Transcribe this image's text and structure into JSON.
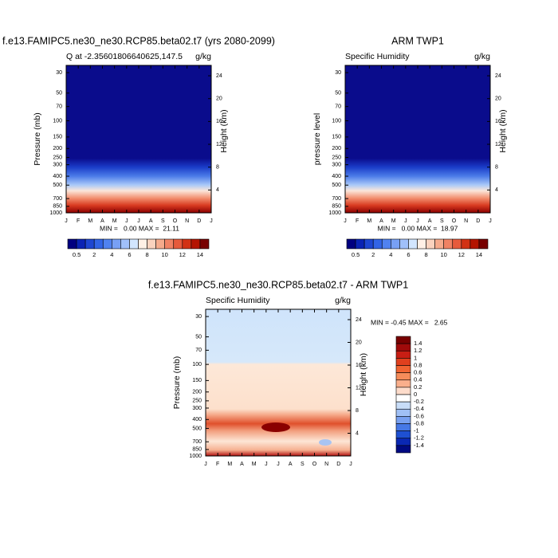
{
  "panels": [
    {
      "type": "contour",
      "title": "f.e13.FAMIPC5.ne30_ne30.RCP85.beta02.t7 (yrs 2080-2099)",
      "left_string": "Q at -2.35601806640625,147.5",
      "right_string": "g/kg",
      "y_label": "Pressure (mb)",
      "y2_label": "Height (km)",
      "ylim": [
        1000,
        25
      ],
      "yticks": [
        30,
        50,
        70,
        100,
        150,
        200,
        250,
        300,
        400,
        500,
        700,
        850,
        1000
      ],
      "y2ticks": [
        24,
        20,
        16,
        12,
        8,
        4
      ],
      "months": [
        "J",
        "F",
        "M",
        "A",
        "M",
        "J",
        "J",
        "A",
        "S",
        "O",
        "N",
        "D",
        "J"
      ],
      "min_max": "MIN =   0.00 MAX =  21.11",
      "colorbar": {
        "labels": [
          0.5,
          2,
          4,
          6,
          8,
          10,
          12,
          14
        ],
        "colors": [
          "#000080",
          "#0a23b4",
          "#1e46d2",
          "#3264e6",
          "#5082f0",
          "#78a0f5",
          "#a0c0fa",
          "#d2e6ff",
          "#fff0e6",
          "#fad2be",
          "#f5aa8c",
          "#f08264",
          "#e65a3c",
          "#d23214",
          "#b41400",
          "#780000"
        ]
      }
    },
    {
      "type": "contour",
      "title": "ARM TWP1",
      "left_string": "Specific Humidity",
      "right_string": "g/kg",
      "y_label": "pressure level",
      "y2_label": "Height (km)",
      "ylim": [
        1000,
        25
      ],
      "yticks": [
        30,
        50,
        70,
        100,
        150,
        200,
        250,
        300,
        400,
        500,
        700,
        850,
        1000
      ],
      "y2ticks": [
        24,
        20,
        16,
        12,
        8,
        4
      ],
      "months": [
        "J",
        "F",
        "M",
        "A",
        "M",
        "J",
        "J",
        "A",
        "S",
        "O",
        "N",
        "D",
        "J"
      ],
      "min_max": "MIN =   0.00 MAX =  18.97",
      "colorbar": {
        "labels": [
          0.5,
          2,
          4,
          6,
          8,
          10,
          12,
          14
        ],
        "colors": [
          "#000080",
          "#0a23b4",
          "#1e46d2",
          "#3264e6",
          "#5082f0",
          "#78a0f5",
          "#a0c0fa",
          "#d2e6ff",
          "#fff0e6",
          "#fad2be",
          "#f5aa8c",
          "#f08264",
          "#e65a3c",
          "#d23214",
          "#b41400",
          "#780000"
        ]
      }
    },
    {
      "type": "contour",
      "title": "f.e13.FAMIPC5.ne30_ne30.RCP85.beta02.t7 - ARM TWP1",
      "left_string": "Specific Humidity",
      "right_string": "g/kg",
      "y_label": "Pressure (mb)",
      "y2_label": "Height (km)",
      "ylim": [
        1000,
        25
      ],
      "yticks": [
        30,
        50,
        70,
        100,
        150,
        200,
        250,
        300,
        400,
        500,
        700,
        850,
        1000
      ],
      "y2ticks": [
        24,
        20,
        16,
        12,
        8,
        4
      ],
      "months": [
        "J",
        "F",
        "M",
        "A",
        "M",
        "J",
        "J",
        "A",
        "S",
        "O",
        "N",
        "D",
        "J"
      ],
      "min_max": "MIN = -0.45 MAX =   2.65",
      "colorbar": {
        "labels": [
          1.4,
          1.2,
          1,
          0.8,
          0.6,
          0.4,
          0.2,
          0,
          -0.2,
          -0.4,
          -0.6,
          -0.8,
          -1,
          -1.2,
          -1.4
        ],
        "colors": [
          "#780000",
          "#a00a0a",
          "#c81e14",
          "#e0401e",
          "#f06432",
          "#f58c5a",
          "#faaf8c",
          "#fddccb",
          "#ffffff",
          "#c8ddf8",
          "#a0c0f5",
          "#78a0f0",
          "#4678e6",
          "#1e50d2",
          "#0a28b4",
          "#000a82"
        ]
      }
    }
  ]
}
